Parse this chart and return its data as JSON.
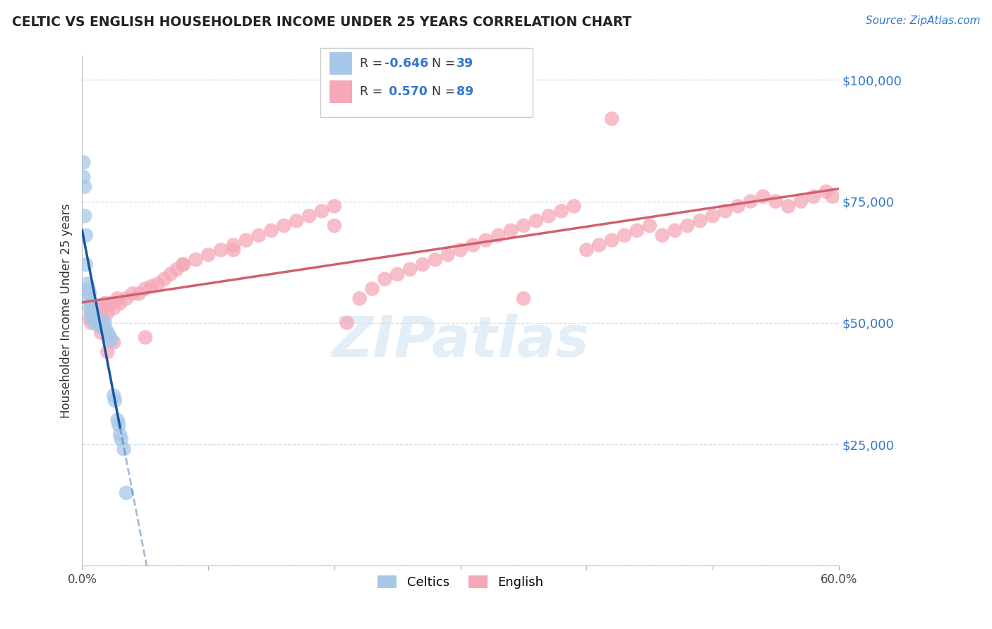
{
  "title": "CELTIC VS ENGLISH HOUSEHOLDER INCOME UNDER 25 YEARS CORRELATION CHART",
  "source": "Source: ZipAtlas.com",
  "ylabel": "Householder Income Under 25 years",
  "xlim": [
    0.0,
    0.6
  ],
  "ylim": [
    0,
    105000
  ],
  "yticks": [
    0,
    25000,
    50000,
    75000,
    100000
  ],
  "ytick_labels": [
    "",
    "$25,000",
    "$50,000",
    "$75,000",
    "$100,000"
  ],
  "xticks": [
    0.0,
    0.1,
    0.2,
    0.3,
    0.4,
    0.5,
    0.6
  ],
  "xtick_labels": [
    "0.0%",
    "",
    "",
    "",
    "",
    "",
    "60.0%"
  ],
  "celtics_color": "#a8c8e8",
  "english_color": "#f5a8b8",
  "celtics_line_color": "#1a55a0",
  "english_line_color": "#d06070",
  "watermark": "ZIPatlas",
  "background_color": "#ffffff",
  "grid_color": "#ccdde8",
  "seed": 123,
  "celtics_x": [
    0.001,
    0.001,
    0.002,
    0.002,
    0.003,
    0.003,
    0.004,
    0.005,
    0.005,
    0.006,
    0.006,
    0.007,
    0.007,
    0.008,
    0.008,
    0.009,
    0.01,
    0.01,
    0.011,
    0.012,
    0.013,
    0.014,
    0.015,
    0.016,
    0.017,
    0.018,
    0.019,
    0.02,
    0.021,
    0.022,
    0.023,
    0.025,
    0.026,
    0.028,
    0.029,
    0.03,
    0.031,
    0.033,
    0.035
  ],
  "celtics_y": [
    83000,
    80000,
    78000,
    72000,
    68000,
    62000,
    58000,
    57000,
    55000,
    56000,
    53000,
    54000,
    52000,
    53000,
    51000,
    52000,
    51500,
    50000,
    50500,
    50000,
    49500,
    50000,
    49500,
    49000,
    49500,
    50000,
    48500,
    48000,
    47500,
    47000,
    46500,
    35000,
    34000,
    30000,
    29000,
    27000,
    26000,
    24000,
    15000
  ],
  "english_x": [
    0.006,
    0.007,
    0.008,
    0.009,
    0.01,
    0.011,
    0.012,
    0.013,
    0.014,
    0.015,
    0.016,
    0.018,
    0.02,
    0.022,
    0.025,
    0.028,
    0.03,
    0.035,
    0.04,
    0.045,
    0.05,
    0.055,
    0.06,
    0.065,
    0.07,
    0.075,
    0.08,
    0.09,
    0.1,
    0.11,
    0.12,
    0.13,
    0.14,
    0.15,
    0.16,
    0.17,
    0.18,
    0.19,
    0.2,
    0.21,
    0.22,
    0.23,
    0.24,
    0.25,
    0.26,
    0.27,
    0.28,
    0.29,
    0.3,
    0.31,
    0.32,
    0.33,
    0.34,
    0.35,
    0.36,
    0.37,
    0.38,
    0.39,
    0.4,
    0.41,
    0.42,
    0.43,
    0.44,
    0.45,
    0.46,
    0.47,
    0.48,
    0.49,
    0.5,
    0.51,
    0.52,
    0.53,
    0.54,
    0.55,
    0.56,
    0.57,
    0.58,
    0.59,
    0.595,
    0.015,
    0.02,
    0.025,
    0.05,
    0.08,
    0.12,
    0.2,
    0.35,
    0.42
  ],
  "english_y": [
    51000,
    50000,
    52000,
    51500,
    50500,
    52000,
    51000,
    52500,
    50000,
    53000,
    51000,
    54000,
    52000,
    54000,
    53000,
    55000,
    54000,
    55000,
    56000,
    56000,
    57000,
    57500,
    58000,
    59000,
    60000,
    61000,
    62000,
    63000,
    64000,
    65000,
    66000,
    67000,
    68000,
    69000,
    70000,
    71000,
    72000,
    73000,
    74000,
    50000,
    55000,
    57000,
    59000,
    60000,
    61000,
    62000,
    63000,
    64000,
    65000,
    66000,
    67000,
    68000,
    69000,
    70000,
    71000,
    72000,
    73000,
    74000,
    65000,
    66000,
    67000,
    68000,
    69000,
    70000,
    68000,
    69000,
    70000,
    71000,
    72000,
    73000,
    74000,
    75000,
    76000,
    75000,
    74000,
    75000,
    76000,
    77000,
    76000,
    48000,
    44000,
    46000,
    47000,
    62000,
    65000,
    70000,
    55000,
    92000
  ]
}
